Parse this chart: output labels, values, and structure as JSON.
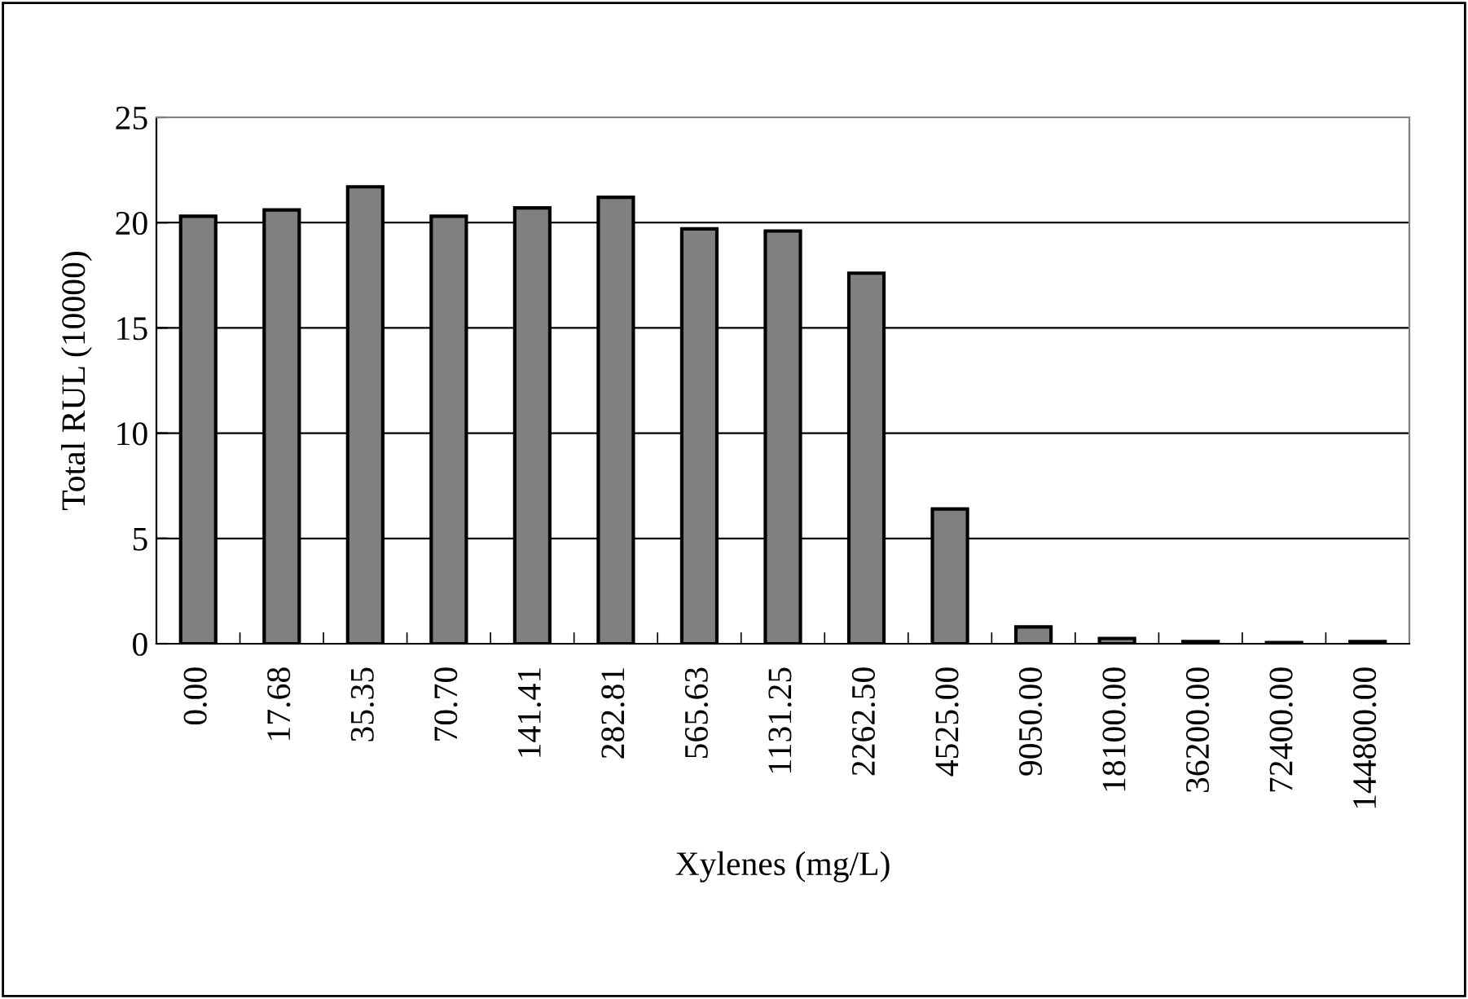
{
  "chart_data": {
    "type": "bar",
    "xlabel": "Xylenes (mg/L)",
    "ylabel": "Total RUL (10000)",
    "categories": [
      "0.00",
      "17.68",
      "35.35",
      "70.70",
      "141.41",
      "282.81",
      "565.63",
      "1131.25",
      "2262.50",
      "4525.00",
      "9050.00",
      "18100.00",
      "36200.00",
      "72400.00",
      "144800.00"
    ],
    "values": [
      20.3,
      20.6,
      21.7,
      20.3,
      20.7,
      21.2,
      19.7,
      19.6,
      17.6,
      6.4,
      0.8,
      0.25,
      0.1,
      0.05,
      0.1
    ],
    "color": "#808080",
    "ylim": [
      0,
      25
    ],
    "yticks": [
      0,
      5,
      10,
      15,
      20,
      25
    ],
    "grid": "y"
  }
}
